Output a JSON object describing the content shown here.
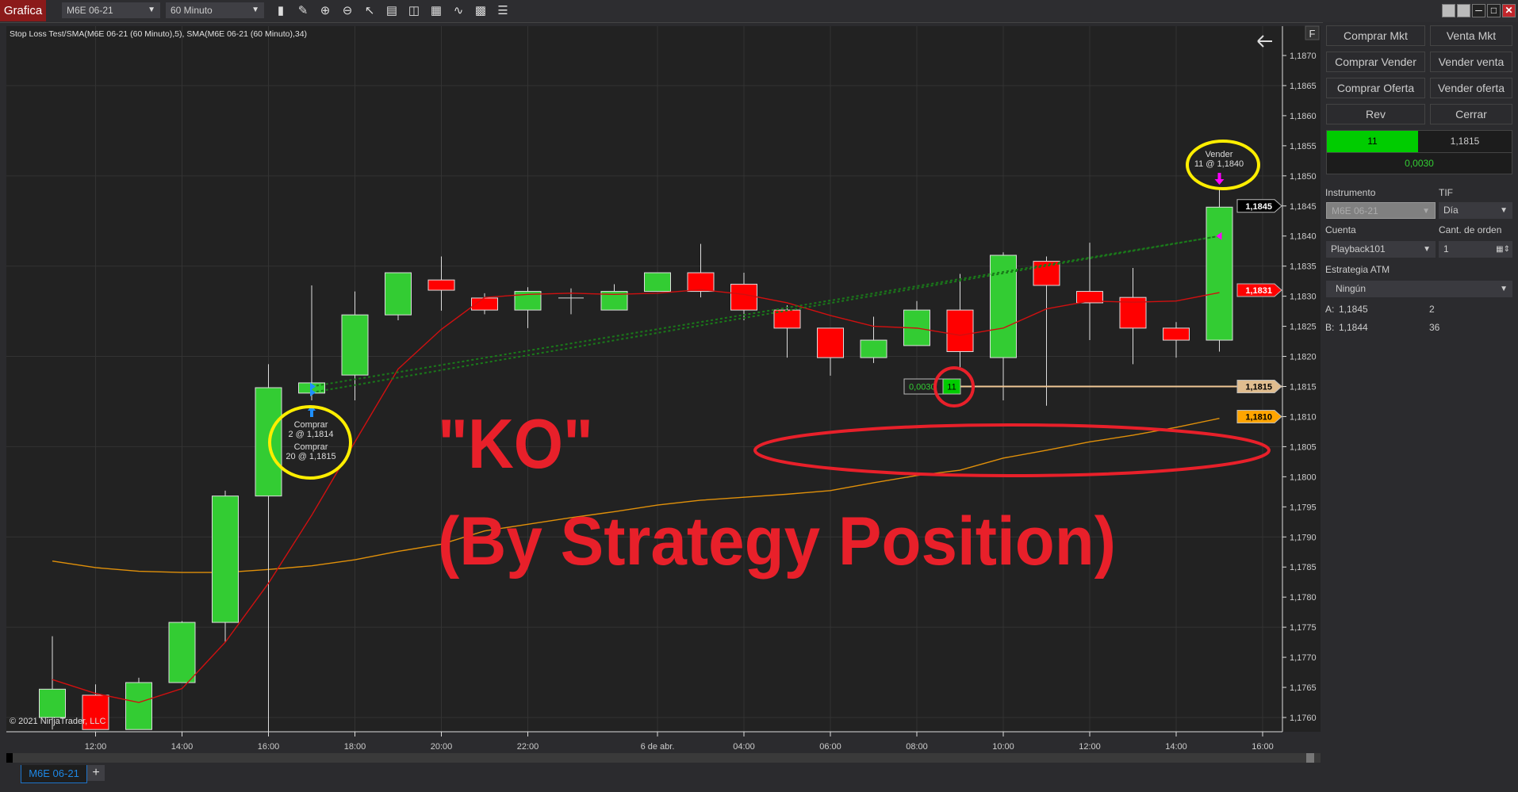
{
  "toolbar": {
    "app_title": "Grafica",
    "instrument": "M6E 06-21",
    "interval": "60 Minuto",
    "icons": [
      "bar-type-icon",
      "drawing-pencil-icon",
      "zoom-in-icon",
      "zoom-out-icon",
      "pointer-icon",
      "data-box-icon",
      "chart-trader-icon",
      "indicators-icon",
      "strategies-icon",
      "properties-icon",
      "list-icon"
    ]
  },
  "chart": {
    "title": "Stop Loss Test/SMA(M6E 06-21 (60 Minuto),5), SMA(M6E 06-21 (60 Minuto),34)",
    "copyright": "© 2021 NinjaTrader, LLC",
    "f_button": "F",
    "back_icon": "arrow-left-icon",
    "annotation_ko": "\"KO\"",
    "annotation_sub": "(By Strategy Position)",
    "entry_line1": "Comprar",
    "entry_line2": "2 @ 1,1814",
    "entry_line3": "Comprar",
    "entry_line4": "20 @ 1,1815",
    "exit_line1": "Vender",
    "exit_line2": "11 @ 1,1840",
    "position_pnl": "0,0030",
    "position_qty": "11",
    "price_tags": [
      {
        "label": "1,1845",
        "value": 1.1845,
        "bg": "#000000",
        "fg": "#ffffff"
      },
      {
        "label": "1,1831",
        "value": 1.1831,
        "bg": "#ff0000",
        "fg": "#ffffff"
      },
      {
        "label": "1,1815",
        "value": 1.1815,
        "bg": "#e0bd8f",
        "fg": "#000000"
      },
      {
        "label": "1,1810",
        "value": 1.181,
        "bg": "#ffa500",
        "fg": "#000000"
      }
    ],
    "colors": {
      "up": "#33cc33",
      "down": "#ff0000",
      "sma5": "#d01010",
      "sma34": "#e0900a",
      "position_line": "#f0c896",
      "annotation": "#e8202a",
      "highlight": "#ffee00",
      "execution_line": "#1a7a1a"
    }
  },
  "chart_data": {
    "type": "candlestick",
    "ylim": [
      1.1757,
      1.1876
    ],
    "yticks": [
      "1,1870",
      "1,1865",
      "1,1860",
      "1,1855",
      "1,1850",
      "1,1845",
      "1,1840",
      "1,1835",
      "1,1830",
      "1,1825",
      "1,1820",
      "1,1815",
      "1,1810",
      "1,1805",
      "1,1800",
      "1,1795",
      "1,1790",
      "1,1785",
      "1,1780",
      "1,1775",
      "1,1770",
      "1,1765",
      "1,1760"
    ],
    "xticks": [
      {
        "i": 1,
        "label": "12:00"
      },
      {
        "i": 3,
        "label": "14:00"
      },
      {
        "i": 5,
        "label": "16:00"
      },
      {
        "i": 7,
        "label": "18:00"
      },
      {
        "i": 9,
        "label": "20:00"
      },
      {
        "i": 11,
        "label": "22:00"
      },
      {
        "i": 14,
        "label": "6 de abr."
      },
      {
        "i": 16,
        "label": "04:00"
      },
      {
        "i": 18,
        "label": "06:00"
      },
      {
        "i": 20,
        "label": "08:00"
      },
      {
        "i": 22,
        "label": "10:00"
      },
      {
        "i": 24,
        "label": "12:00"
      },
      {
        "i": 26,
        "label": "14:00"
      },
      {
        "i": 28,
        "label": "16:00"
      }
    ],
    "ohlc": [
      [
        1.176,
        1.17735,
        1.1758,
        1.17647
      ],
      [
        1.17637,
        1.17655,
        1.1758,
        1.1758
      ],
      [
        1.1758,
        1.17666,
        1.1758,
        1.17658
      ],
      [
        1.17658,
        1.1776,
        1.17658,
        1.17758
      ],
      [
        1.17758,
        1.17977,
        1.17726,
        1.17968
      ],
      [
        1.17968,
        1.18187,
        1.17574,
        1.18148
      ],
      [
        1.18139,
        1.18318,
        1.18127,
        1.18156
      ],
      [
        1.18169,
        1.18308,
        1.18127,
        1.18269
      ],
      [
        1.18269,
        1.18339,
        1.1826,
        1.18339
      ],
      [
        1.18327,
        1.18366,
        1.18276,
        1.1831
      ],
      [
        1.18297,
        1.18305,
        1.1827,
        1.18277
      ],
      [
        1.18277,
        1.18315,
        1.18247,
        1.18308
      ],
      [
        1.18297,
        1.18313,
        1.1827,
        1.18297
      ],
      [
        1.18277,
        1.1832,
        1.18277,
        1.18308
      ],
      [
        1.18308,
        1.18339,
        1.18308,
        1.18339
      ],
      [
        1.18339,
        1.18387,
        1.18298,
        1.18308
      ],
      [
        1.1832,
        1.18339,
        1.1826,
        1.18277
      ],
      [
        1.18277,
        1.18285,
        1.18198,
        1.18247
      ],
      [
        1.18247,
        1.18247,
        1.18168,
        1.18198
      ],
      [
        1.18198,
        1.18266,
        1.18189,
        1.18227
      ],
      [
        1.18218,
        1.18292,
        1.18218,
        1.18277
      ],
      [
        1.18277,
        1.18337,
        1.18179,
        1.18208
      ],
      [
        1.18198,
        1.18373,
        1.18127,
        1.18368
      ],
      [
        1.18358,
        1.18366,
        1.18118,
        1.18318
      ],
      [
        1.18308,
        1.18389,
        1.18227,
        1.18289
      ],
      [
        1.18298,
        1.18347,
        1.18187,
        1.18247
      ],
      [
        1.18247,
        1.18257,
        1.18198,
        1.18227
      ],
      [
        1.18227,
        1.18477,
        1.18208,
        1.18448
      ]
    ],
    "series": [
      {
        "name": "SMA(M6E 06-21 (60 Minuto),5)",
        "values": [
          1.17663,
          1.1764,
          1.17625,
          1.17648,
          1.17725,
          1.17823,
          1.17936,
          1.18058,
          1.18179,
          1.18245,
          1.18298,
          1.18303,
          1.18305,
          1.18303,
          1.18305,
          1.18311,
          1.18303,
          1.18289,
          1.18268,
          1.1825,
          1.18247,
          1.18235,
          1.18247,
          1.18279,
          1.18292,
          1.1829,
          1.18292,
          1.18306
        ]
      },
      {
        "name": "SMA(M6E 06-21 (60 Minuto),34)",
        "values": [
          1.1786,
          1.17849,
          1.17843,
          1.17841,
          1.17841,
          1.17846,
          1.17852,
          1.17862,
          1.17876,
          1.17888,
          1.1791,
          1.17921,
          1.17932,
          1.17942,
          1.17953,
          1.17961,
          1.17966,
          1.17971,
          1.17977,
          1.1799,
          1.18002,
          1.18011,
          1.18031,
          1.18044,
          1.18058,
          1.18069,
          1.18082,
          1.18097
        ]
      }
    ],
    "executions": [
      {
        "side": "buy",
        "bar": 6,
        "qty": 2,
        "price": 1.1814
      },
      {
        "side": "buy",
        "bar": 6,
        "qty": 20,
        "price": 1.1815
      },
      {
        "side": "sell",
        "bar": 27,
        "qty": 11,
        "price": 1.184
      }
    ],
    "position_line": 1.1815,
    "grid": true
  },
  "panel": {
    "buttons": [
      "Comprar Mkt",
      "Venta Mkt",
      "Comprar Vender",
      "Vender venta",
      "Comprar Oferta",
      "Vender oferta",
      "Rev",
      "Cerrar"
    ],
    "position_qty": "11",
    "position_price": "1,1815",
    "position_pnl": "0,0030",
    "instrument_label": "Instrumento",
    "instrument_value": "M6E 06-21",
    "tif_label": "TIF",
    "tif_value": "Día",
    "account_label": "Cuenta",
    "account_value": "Playback101",
    "qty_label": "Cant. de orden",
    "qty_value": "1",
    "atm_label": "Estrategia ATM",
    "atm_value": "Ningún",
    "ask_label": "A:",
    "ask_price": "1,1845",
    "ask_size": "2",
    "bid_label": "B:",
    "bid_price": "1,1844",
    "bid_size": "36"
  },
  "tabs": {
    "active": "M6E 06-21",
    "add": "+"
  }
}
